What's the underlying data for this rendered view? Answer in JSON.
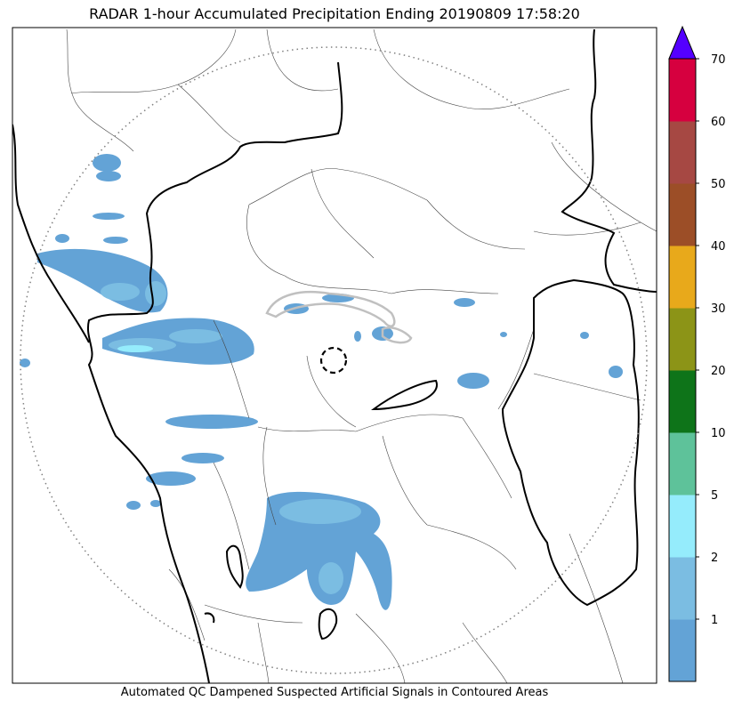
{
  "title": "RADAR 1-hour Accumulated Precipitation Ending 20190809 17:58:20",
  "caption": "Automated QC Dampened Suspected Artificial Signals in Contoured Areas",
  "colorbar": {
    "levels": [
      {
        "label": "",
        "color": "#63a3d6"
      },
      {
        "label": "1",
        "color": "#7bbde2"
      },
      {
        "label": "2",
        "color": "#95ecfc"
      },
      {
        "label": "5",
        "color": "#5ec29a"
      },
      {
        "label": "10",
        "color": "#0e7419"
      },
      {
        "label": "20",
        "color": "#8c9417"
      },
      {
        "label": "30",
        "color": "#e8a91b"
      },
      {
        "label": "40",
        "color": "#9c4e27"
      },
      {
        "label": "50",
        "color": "#a64843"
      },
      {
        "label": "60",
        "color": "#d6003f"
      },
      {
        "label": "70",
        "color": ""
      }
    ],
    "overflow_color": "#5400ff"
  },
  "colors": {
    "precip_light": "#63a3d6",
    "precip_mid": "#7bbde2",
    "precip_bright": "#95ecfc",
    "qc_contour": "#c0c0c0",
    "range_ring": "#808080"
  }
}
